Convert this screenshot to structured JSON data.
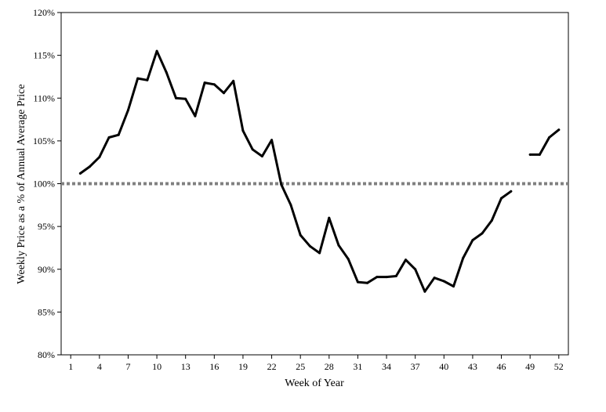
{
  "chart_data": {
    "type": "line",
    "title": "",
    "xlabel": "Week of Year",
    "ylabel": "Weekly Price as a % of Annual Average Price",
    "xlim": [
      0,
      53
    ],
    "ylim": [
      80,
      120
    ],
    "y_unit": "%",
    "x_ticks": [
      1,
      4,
      7,
      10,
      13,
      16,
      19,
      22,
      25,
      28,
      31,
      34,
      37,
      40,
      43,
      46,
      49,
      52
    ],
    "y_ticks": [
      80,
      85,
      90,
      95,
      100,
      105,
      110,
      115,
      120
    ],
    "y_tick_labels": [
      "80%",
      "85%",
      "90%",
      "95%",
      "100%",
      "105%",
      "110%",
      "115%",
      "120%"
    ],
    "grid": false,
    "legend": "none",
    "reference_line": {
      "y": 100,
      "style": "dotted",
      "color": "#808080"
    },
    "series": [
      {
        "color": "#000000",
        "points": [
          [
            2,
            101.2
          ],
          [
            3,
            102.0
          ],
          [
            4,
            103.1
          ],
          [
            5,
            105.4
          ],
          [
            6,
            105.7
          ],
          [
            7,
            108.6
          ],
          [
            8,
            112.3
          ],
          [
            9,
            112.1
          ],
          [
            10,
            115.5
          ],
          [
            11,
            113.0
          ],
          [
            12,
            110.0
          ],
          [
            13,
            109.9
          ],
          [
            14,
            107.9
          ],
          [
            15,
            111.8
          ],
          [
            16,
            111.6
          ],
          [
            17,
            110.6
          ],
          [
            18,
            112.0
          ],
          [
            19,
            106.2
          ],
          [
            20,
            104.0
          ],
          [
            21,
            103.2
          ],
          [
            22,
            105.1
          ],
          [
            23,
            99.9
          ],
          [
            24,
            97.5
          ],
          [
            25,
            94.0
          ],
          [
            26,
            92.7
          ],
          [
            27,
            91.9
          ],
          [
            28,
            96.0
          ],
          [
            29,
            92.8
          ],
          [
            30,
            91.2
          ],
          [
            31,
            88.5
          ],
          [
            32,
            88.4
          ],
          [
            33,
            89.1
          ],
          [
            34,
            89.1
          ],
          [
            35,
            89.2
          ],
          [
            36,
            91.1
          ],
          [
            37,
            90.0
          ],
          [
            38,
            87.4
          ],
          [
            39,
            89.0
          ],
          [
            40,
            88.6
          ],
          [
            41,
            88.0
          ],
          [
            42,
            91.3
          ],
          [
            43,
            93.4
          ],
          [
            44,
            94.2
          ],
          [
            45,
            95.7
          ],
          [
            46,
            98.3
          ],
          [
            47,
            99.1
          ],
          null,
          [
            49,
            103.4
          ],
          [
            50,
            103.4
          ],
          [
            51,
            105.4
          ],
          [
            52,
            106.3
          ]
        ]
      }
    ]
  }
}
